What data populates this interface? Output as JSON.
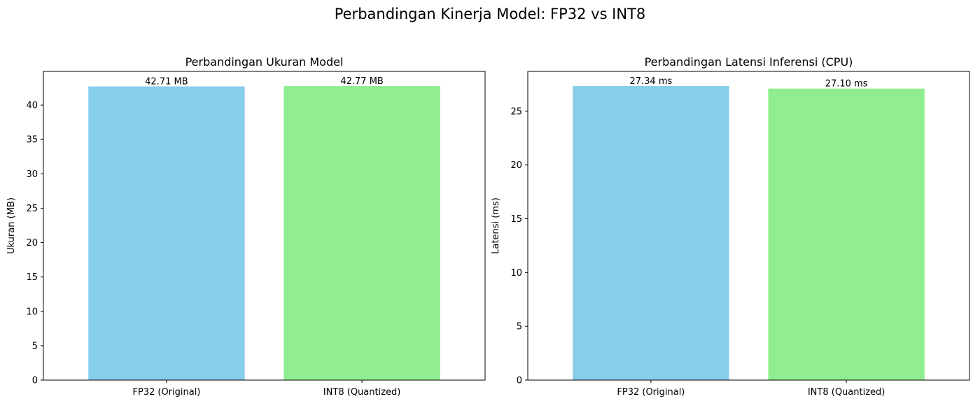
{
  "figure": {
    "suptitle": "Perbandingan Kinerja Model: FP32 vs INT8"
  },
  "chart_data": [
    {
      "type": "bar",
      "title": "Perbandingan Ukuran Model",
      "xlabel": "",
      "ylabel": "Ukuran (MB)",
      "categories": [
        "FP32 (Original)",
        "INT8 (Quantized)"
      ],
      "values": [
        42.71,
        42.77
      ],
      "data_labels": [
        "42.71 MB",
        "42.77 MB"
      ],
      "colors": [
        "#87ceeb",
        "#90ee90"
      ],
      "ylim": [
        0,
        44.9
      ],
      "yticks": [
        0,
        5,
        10,
        15,
        20,
        25,
        30,
        35,
        40
      ],
      "grid": false
    },
    {
      "type": "bar",
      "title": "Perbandingan Latensi Inferensi (CPU)",
      "xlabel": "",
      "ylabel": "Latensi (ms)",
      "categories": [
        "FP32 (Original)",
        "INT8 (Quantized)"
      ],
      "values": [
        27.34,
        27.1
      ],
      "data_labels": [
        "27.34 ms",
        "27.10 ms"
      ],
      "colors": [
        "#87ceeb",
        "#90ee90"
      ],
      "ylim": [
        0,
        28.7
      ],
      "yticks": [
        0,
        5,
        10,
        15,
        20,
        25
      ],
      "grid": false
    }
  ]
}
